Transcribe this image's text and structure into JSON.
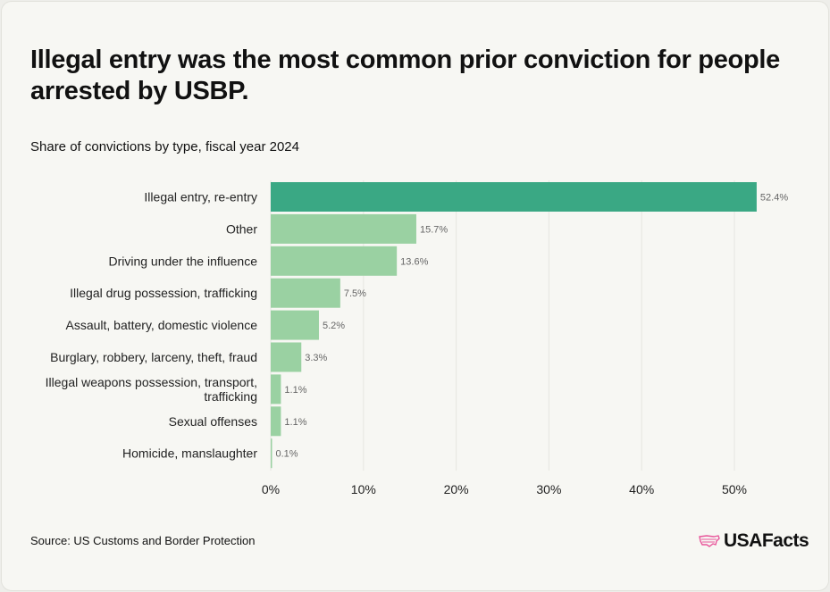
{
  "title": "Illegal entry was the most common prior conviction for people arrested by USBP.",
  "subtitle": "Share of convictions by type, fiscal year 2024",
  "source": "Source: US Customs and Border Protection",
  "logo": {
    "text": "USAFacts",
    "icon": "us-map-icon",
    "color": "#e8559a"
  },
  "chart_data": {
    "type": "bar",
    "orientation": "horizontal",
    "title": "",
    "xlabel": "",
    "ylabel": "",
    "categories": [
      [
        "Illegal entry, re-entry"
      ],
      [
        "Other"
      ],
      [
        "Driving under the influence"
      ],
      [
        "Illegal drug possession, trafficking"
      ],
      [
        "Assault, battery, domestic violence"
      ],
      [
        "Burglary, robbery, larceny, theft, fraud"
      ],
      [
        "Illegal weapons possession, transport,",
        "trafficking"
      ],
      [
        "Sexual offenses"
      ],
      [
        "Homicide, manslaughter"
      ]
    ],
    "values": [
      52.4,
      15.7,
      13.6,
      7.5,
      5.2,
      3.3,
      1.1,
      1.1,
      0.1
    ],
    "data_labels": [
      "52.4%",
      "15.7%",
      "13.6%",
      "7.5%",
      "5.2%",
      "3.3%",
      "1.1%",
      "1.1%",
      "0.1%"
    ],
    "xlim": [
      0,
      55
    ],
    "x_ticks": [
      0,
      10,
      20,
      30,
      40,
      50
    ],
    "x_tick_labels": [
      "0%",
      "10%",
      "20%",
      "30%",
      "40%",
      "50%"
    ],
    "grid": "vertical",
    "colors": {
      "highlight": "#3aa884",
      "default": "#9ad1a2"
    }
  }
}
